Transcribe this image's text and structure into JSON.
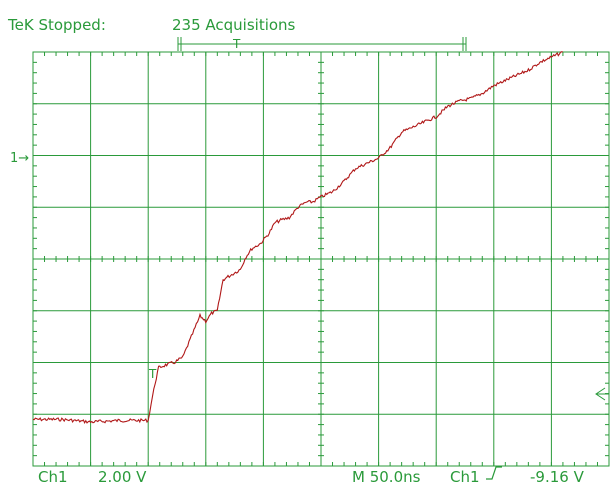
{
  "header": {
    "status_left": "TeK Stopped:",
    "status_right": "235 Acquisitions"
  },
  "footer": {
    "channel": "Ch1",
    "scale": "2.00 V",
    "timebase": "M 50.0ns",
    "trigger_channel": "Ch1",
    "trigger_level": "-9.16 V"
  },
  "markers": {
    "ch1_ground": "1→",
    "trigger_label": "T"
  },
  "colors": {
    "grid": "#2a9a3a",
    "trace": "#b01818",
    "background": "#ffffff"
  },
  "chart_data": {
    "type": "line",
    "title": "",
    "xlabel": "",
    "ylabel": "",
    "grid": true,
    "x_divisions": 10,
    "y_divisions": 8,
    "x_unit_per_division": "50.0ns",
    "y_unit_per_division": "2.00 V",
    "xlim": [
      0,
      10
    ],
    "ylim": [
      -4,
      4
    ],
    "series": [
      {
        "values_x": [
          0.0,
          0.5,
          1.0,
          1.5,
          2.0,
          2.05,
          2.12,
          2.18,
          2.3,
          2.45,
          2.6,
          2.75,
          2.9,
          3.0,
          3.1,
          3.2,
          3.3,
          3.45,
          3.6,
          3.7,
          3.8,
          3.95,
          4.1,
          4.2,
          4.3,
          4.45,
          4.6,
          4.75,
          4.85,
          5.0,
          5.2,
          5.4,
          5.6,
          5.8,
          6.0,
          6.2,
          6.4,
          6.6,
          6.8,
          7.0,
          7.2,
          7.4,
          7.6,
          7.8,
          8.0,
          8.2,
          8.4,
          8.6,
          8.8,
          9.0,
          9.2
        ],
        "values_y": [
          -3.1,
          -3.1,
          -3.15,
          -3.12,
          -3.12,
          -2.8,
          -2.4,
          -2.1,
          -2.05,
          -2.0,
          -1.9,
          -1.5,
          -1.1,
          -1.2,
          -1.05,
          -1.0,
          -0.4,
          -0.3,
          -0.2,
          0.05,
          0.2,
          0.3,
          0.5,
          0.7,
          0.75,
          0.8,
          1.0,
          1.1,
          1.1,
          1.2,
          1.3,
          1.5,
          1.75,
          1.85,
          1.95,
          2.15,
          2.45,
          2.55,
          2.65,
          2.75,
          2.95,
          3.05,
          3.1,
          3.2,
          3.35,
          3.45,
          3.55,
          3.65,
          3.8,
          3.9,
          4.0
        ]
      }
    ]
  }
}
